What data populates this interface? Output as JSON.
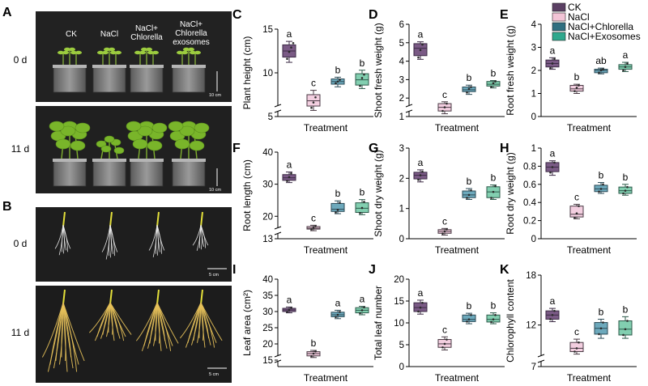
{
  "photo_panels": {
    "A": {
      "label": "A",
      "columns": [
        "CK",
        "NaCl",
        "NaCl+ Chlorella",
        "NaCl+ Chlorella exosomes"
      ],
      "rows": [
        "0 d",
        "11 d"
      ],
      "scale": "10 cm"
    },
    "B": {
      "label": "B",
      "rows": [
        "0 d",
        "11 d"
      ],
      "scale": "5 cm"
    }
  },
  "legend": {
    "items": [
      {
        "name": "CK",
        "color": "#5a3f63"
      },
      {
        "name": "NaCl",
        "color": "#f2c4d6"
      },
      {
        "name": "NaCl+Chlorella",
        "color": "#2f6f80"
      },
      {
        "name": "NaCl+Exosomes",
        "color": "#2fa88d"
      }
    ]
  },
  "colors": {
    "fills": [
      "#7a5a85",
      "#f3cfe0",
      "#6da9bc",
      "#82cfb0"
    ],
    "strokes": [
      "#3b2a44",
      "#4a3a44",
      "#2b4a56",
      "#2c5a4a"
    ]
  },
  "chart_data": [
    {
      "id": "C",
      "label": "C",
      "type": "box",
      "ylabel": "Plant height (cm)",
      "xlabel": "Treatment",
      "ylim": [
        5,
        15
      ],
      "yticks": [
        5,
        10,
        15
      ],
      "break": true,
      "boxes": [
        {
          "min": 11.2,
          "q1": 11.8,
          "median": 12.5,
          "q3": 13.2,
          "max": 13.6,
          "points": [
            11.6,
            12.4,
            12.9,
            13.4
          ],
          "letter": "a"
        },
        {
          "min": 5.7,
          "q1": 6.2,
          "median": 6.8,
          "q3": 7.5,
          "max": 8.0,
          "points": [
            6.0,
            6.6,
            7.2
          ],
          "letter": "c"
        },
        {
          "min": 8.4,
          "q1": 8.7,
          "median": 9.0,
          "q3": 9.3,
          "max": 9.5,
          "points": [
            8.8,
            9.0,
            9.2
          ],
          "letter": "b"
        },
        {
          "min": 8.2,
          "q1": 8.6,
          "median": 9.2,
          "q3": 9.9,
          "max": 10.3,
          "points": [
            8.5,
            9.4,
            9.8
          ],
          "letter": "b"
        }
      ]
    },
    {
      "id": "D",
      "label": "D",
      "type": "box",
      "ylabel": "Shoot fresh weight (g)",
      "xlabel": "Treatment",
      "ylim": [
        1,
        6
      ],
      "yticks": [
        1,
        2,
        3,
        4,
        5,
        6
      ],
      "break": true,
      "boxes": [
        {
          "min": 4.1,
          "q1": 4.3,
          "median": 4.7,
          "q3": 4.95,
          "max": 5.05,
          "points": [
            4.2,
            4.6,
            4.9
          ],
          "letter": "a"
        },
        {
          "min": 1.15,
          "q1": 1.3,
          "median": 1.5,
          "q3": 1.7,
          "max": 1.8,
          "points": [
            1.3,
            1.5,
            1.7
          ],
          "letter": "c"
        },
        {
          "min": 2.2,
          "q1": 2.35,
          "median": 2.45,
          "q3": 2.6,
          "max": 2.7,
          "points": [
            2.3,
            2.5,
            2.6
          ],
          "letter": "b"
        },
        {
          "min": 2.55,
          "q1": 2.65,
          "median": 2.75,
          "q3": 2.9,
          "max": 2.95,
          "points": [
            2.6,
            2.8,
            2.9
          ],
          "letter": "b"
        }
      ]
    },
    {
      "id": "E",
      "label": "E",
      "type": "box",
      "ylabel": "Root fresh weight (g)",
      "xlabel": "Treatment",
      "ylim": [
        0,
        4
      ],
      "yticks": [
        0,
        1,
        2,
        3,
        4
      ],
      "break": false,
      "boxes": [
        {
          "min": 2.05,
          "q1": 2.15,
          "median": 2.3,
          "q3": 2.45,
          "max": 2.55,
          "points": [
            2.1,
            2.3,
            2.5
          ],
          "letter": "a"
        },
        {
          "min": 1.0,
          "q1": 1.1,
          "median": 1.2,
          "q3": 1.35,
          "max": 1.4,
          "points": [
            1.1,
            1.25,
            1.35
          ],
          "letter": "b"
        },
        {
          "min": 1.85,
          "q1": 1.9,
          "median": 2.0,
          "q3": 2.05,
          "max": 2.1,
          "points": [
            1.9,
            2.0,
            2.05
          ],
          "letter": "ab"
        },
        {
          "min": 1.95,
          "q1": 2.05,
          "median": 2.15,
          "q3": 2.25,
          "max": 2.35,
          "points": [
            2.0,
            2.15,
            2.3
          ],
          "letter": "a"
        }
      ]
    },
    {
      "id": "F",
      "label": "F",
      "type": "box",
      "ylabel": "Root length (cm)",
      "xlabel": "Treatment",
      "ylim": [
        13,
        40
      ],
      "yticks": [
        13,
        20,
        30,
        40
      ],
      "break": true,
      "boxes": [
        {
          "min": 30.5,
          "q1": 31.2,
          "median": 32.0,
          "q3": 33.0,
          "max": 33.8,
          "points": [
            31.0,
            32.2,
            33.4
          ],
          "letter": "a"
        },
        {
          "min": 15.5,
          "q1": 16.0,
          "median": 16.3,
          "q3": 16.8,
          "max": 17.2,
          "points": [
            15.9,
            16.4,
            16.9
          ],
          "letter": "c"
        },
        {
          "min": 20.8,
          "q1": 21.5,
          "median": 22.2,
          "q3": 24.0,
          "max": 24.8,
          "points": [
            21.2,
            22.0,
            24.2
          ],
          "letter": "b"
        },
        {
          "min": 20.5,
          "q1": 21.2,
          "median": 22.5,
          "q3": 24.2,
          "max": 25.2,
          "points": [
            21.0,
            22.6,
            24.5
          ],
          "letter": "b"
        }
      ]
    },
    {
      "id": "G",
      "label": "G",
      "type": "box",
      "ylabel": "Shoot dry weight (g)",
      "xlabel": "Treatment",
      "ylim": [
        0,
        3
      ],
      "yticks": [
        0,
        1,
        2,
        3
      ],
      "break": false,
      "boxes": [
        {
          "min": 1.88,
          "q1": 1.98,
          "median": 2.1,
          "q3": 2.2,
          "max": 2.28,
          "points": [
            1.95,
            2.1,
            2.22
          ],
          "letter": "a"
        },
        {
          "min": 0.12,
          "q1": 0.18,
          "median": 0.24,
          "q3": 0.3,
          "max": 0.34,
          "points": [
            0.17,
            0.24,
            0.31
          ],
          "letter": "c"
        },
        {
          "min": 1.3,
          "q1": 1.36,
          "median": 1.45,
          "q3": 1.58,
          "max": 1.66,
          "points": [
            1.35,
            1.45,
            1.6
          ],
          "letter": "b"
        },
        {
          "min": 1.3,
          "q1": 1.36,
          "median": 1.55,
          "q3": 1.72,
          "max": 1.78,
          "points": [
            1.35,
            1.55,
            1.74
          ],
          "letter": "b"
        }
      ]
    },
    {
      "id": "H",
      "label": "H",
      "type": "box",
      "ylabel": "Root dry weight (g)",
      "xlabel": "Treatment",
      "ylim": [
        0,
        1.0
      ],
      "yticks": [
        0,
        0.2,
        0.4,
        0.6,
        0.8,
        1.0
      ],
      "break": false,
      "boxes": [
        {
          "min": 0.7,
          "q1": 0.74,
          "median": 0.79,
          "q3": 0.84,
          "max": 0.86,
          "points": [
            0.73,
            0.79,
            0.84
          ],
          "letter": "a"
        },
        {
          "min": 0.22,
          "q1": 0.24,
          "median": 0.27,
          "q3": 0.36,
          "max": 0.38,
          "points": [
            0.23,
            0.28,
            0.36
          ],
          "letter": "c"
        },
        {
          "min": 0.5,
          "q1": 0.52,
          "median": 0.55,
          "q3": 0.59,
          "max": 0.62,
          "points": [
            0.52,
            0.55,
            0.6
          ],
          "letter": "b"
        },
        {
          "min": 0.48,
          "q1": 0.5,
          "median": 0.53,
          "q3": 0.57,
          "max": 0.6,
          "points": [
            0.5,
            0.53,
            0.57
          ],
          "letter": "b"
        }
      ]
    },
    {
      "id": "I",
      "label": "I",
      "type": "box",
      "ylabel": "Leaf area (cm²)",
      "xlabel": "Treatment",
      "ylim": [
        13,
        40
      ],
      "yticks": [
        15,
        20,
        25,
        30,
        35,
        40
      ],
      "break": true,
      "boxes": [
        {
          "min": 29.6,
          "q1": 30.0,
          "median": 30.5,
          "q3": 31.0,
          "max": 31.4,
          "points": [
            29.9,
            30.5,
            31.1
          ],
          "letter": "a"
        },
        {
          "min": 15.8,
          "q1": 16.3,
          "median": 17.0,
          "q3": 17.6,
          "max": 18.0,
          "points": [
            16.2,
            17.0,
            17.7
          ],
          "letter": "b"
        },
        {
          "min": 27.8,
          "q1": 28.4,
          "median": 29.0,
          "q3": 29.8,
          "max": 30.4,
          "points": [
            28.3,
            29.0,
            29.9
          ],
          "letter": "a"
        },
        {
          "min": 29.0,
          "q1": 29.6,
          "median": 30.4,
          "q3": 31.2,
          "max": 31.6,
          "points": [
            29.5,
            30.4,
            31.3
          ],
          "letter": "a"
        }
      ]
    },
    {
      "id": "J",
      "label": "J",
      "type": "box",
      "ylabel": "Total leaf number",
      "xlabel": "Treatment",
      "ylim": [
        0,
        20
      ],
      "yticks": [
        0,
        5,
        10,
        15,
        20
      ],
      "break": false,
      "boxes": [
        {
          "min": 12.0,
          "q1": 12.6,
          "median": 13.5,
          "q3": 14.6,
          "max": 15.2,
          "points": [
            12.6,
            13.5,
            14.6
          ],
          "letter": "a"
        },
        {
          "min": 3.8,
          "q1": 4.4,
          "median": 5.2,
          "q3": 6.2,
          "max": 6.8,
          "points": [
            4.4,
            5.2,
            6.2
          ],
          "letter": "c"
        },
        {
          "min": 9.8,
          "q1": 10.3,
          "median": 10.8,
          "q3": 11.8,
          "max": 12.2,
          "points": [
            10.3,
            10.8,
            11.8
          ],
          "letter": "b"
        },
        {
          "min": 9.8,
          "q1": 10.2,
          "median": 10.8,
          "q3": 11.8,
          "max": 12.3,
          "points": [
            10.2,
            10.8,
            11.8
          ],
          "letter": "b"
        }
      ]
    },
    {
      "id": "K",
      "label": "K",
      "type": "box",
      "ylabel": "Chlorophyll content",
      "xlabel": "Treatment",
      "ylim": [
        7,
        18
      ],
      "yticks": [
        7,
        12,
        18
      ],
      "break": true,
      "boxes": [
        {
          "min": 12.4,
          "q1": 12.7,
          "median": 13.2,
          "q3": 13.7,
          "max": 14.0,
          "points": [
            12.7,
            13.2,
            13.7
          ],
          "letter": "a"
        },
        {
          "min": 8.5,
          "q1": 8.8,
          "median": 9.2,
          "q3": 9.9,
          "max": 10.3,
          "points": [
            8.8,
            9.2,
            9.9
          ],
          "letter": "c"
        },
        {
          "min": 10.4,
          "q1": 10.9,
          "median": 11.6,
          "q3": 12.3,
          "max": 12.7,
          "points": [
            10.9,
            11.6,
            12.3
          ],
          "letter": "b"
        },
        {
          "min": 10.4,
          "q1": 10.8,
          "median": 11.5,
          "q3": 12.5,
          "max": 13.0,
          "points": [
            10.8,
            11.5,
            12.5
          ],
          "letter": "b"
        }
      ]
    }
  ]
}
